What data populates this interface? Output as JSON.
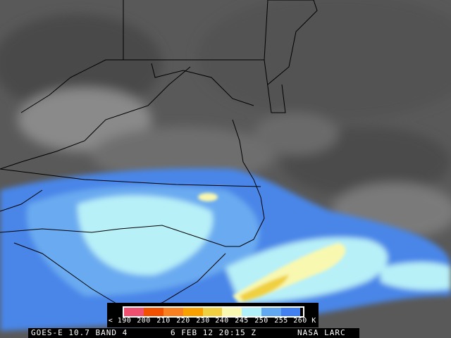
{
  "legend": {
    "unit": "K",
    "labels": [
      "< 190",
      "200",
      "210",
      "220",
      "230",
      "240",
      "245",
      "250",
      "255",
      "260"
    ],
    "colors": [
      "#f05070",
      "#f05000",
      "#f88020",
      "#f8a000",
      "#f0d040",
      "#f8f8b0",
      "#b0f0f8",
      "#60a8f0",
      "#4080f0"
    ]
  },
  "footer": {
    "satellite": "GOES-E 10.7 BAND 4",
    "datetime": "6 FEB 12 20:15 Z",
    "source": "NASA LARC"
  }
}
